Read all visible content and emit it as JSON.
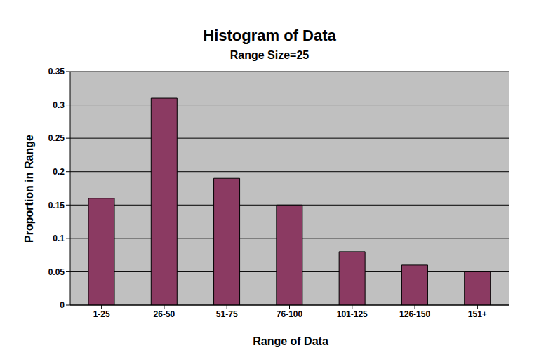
{
  "chart_data": {
    "type": "bar",
    "title": "Histogram of Data",
    "subtitle": "Range Size=25",
    "x_label": "Range of Data",
    "y_label": "Proportion in Range",
    "categories": [
      "1-25",
      "26-50",
      "51-75",
      "76-100",
      "101-125",
      "126-150",
      "151+"
    ],
    "values": [
      0.16,
      0.31,
      0.19,
      0.15,
      0.08,
      0.06,
      0.05
    ],
    "color": "#8b3a62",
    "ylim": [
      0,
      0.35
    ],
    "yticks": [
      0,
      0.05,
      0.1,
      0.15,
      0.2,
      0.25,
      0.3,
      0.35
    ],
    "grid": true
  }
}
